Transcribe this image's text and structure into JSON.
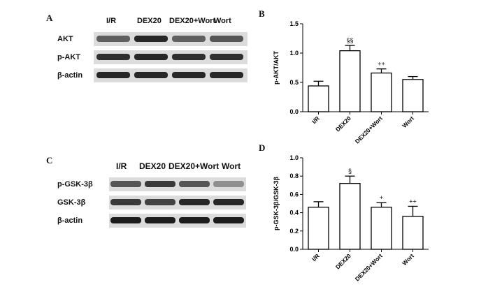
{
  "panels": {
    "a": {
      "letter": "A",
      "lanes": [
        "I/R",
        "DEX20",
        "DEX20+Wort",
        "Wort"
      ],
      "rows": [
        "AKT",
        "p-AKT",
        "β-actin"
      ],
      "band_intensity": [
        [
          0.55,
          0.85,
          0.55,
          0.6
        ],
        [
          0.8,
          0.85,
          0.8,
          0.8
        ],
        [
          0.85,
          0.85,
          0.85,
          0.85
        ]
      ]
    },
    "c": {
      "letter": "C",
      "lanes": [
        "I/R",
        "DEX20",
        "DEX20+Wort",
        "Wort"
      ],
      "rows": [
        "p-GSK-3β",
        "GSK-3β",
        "β-actin"
      ],
      "band_intensity": [
        [
          0.6,
          0.75,
          0.6,
          0.3
        ],
        [
          0.75,
          0.7,
          0.85,
          0.85
        ],
        [
          0.9,
          0.9,
          0.9,
          0.9
        ]
      ]
    }
  },
  "chart_data": [
    {
      "panel": "B",
      "type": "bar",
      "categories": [
        "I/R",
        "DEX20",
        "DEX20+Wort",
        "Wort"
      ],
      "values": [
        0.44,
        1.04,
        0.66,
        0.55
      ],
      "errors": [
        0.08,
        0.09,
        0.07,
        0.05
      ],
      "annotations": [
        "",
        "§§",
        "++",
        ""
      ],
      "ylabel": "p-AKT/AKT",
      "ylim": [
        0,
        1.5
      ],
      "yticks": [
        "0.0",
        "0.5",
        "1.0",
        "1.5"
      ],
      "grid": false
    },
    {
      "panel": "D",
      "type": "bar",
      "categories": [
        "I/R",
        "DEX20",
        "DEX20+Wort",
        "Wort"
      ],
      "values": [
        0.46,
        0.72,
        0.46,
        0.36
      ],
      "errors": [
        0.06,
        0.08,
        0.05,
        0.11
      ],
      "annotations": [
        "",
        "§",
        "+",
        "++"
      ],
      "ylabel": "p-GSK-3β/GSK-3β",
      "ylim": [
        0,
        1.0
      ],
      "yticks": [
        "0.0",
        "0.2",
        "0.4",
        "0.6",
        "0.8",
        "1.0"
      ],
      "grid": false
    }
  ]
}
